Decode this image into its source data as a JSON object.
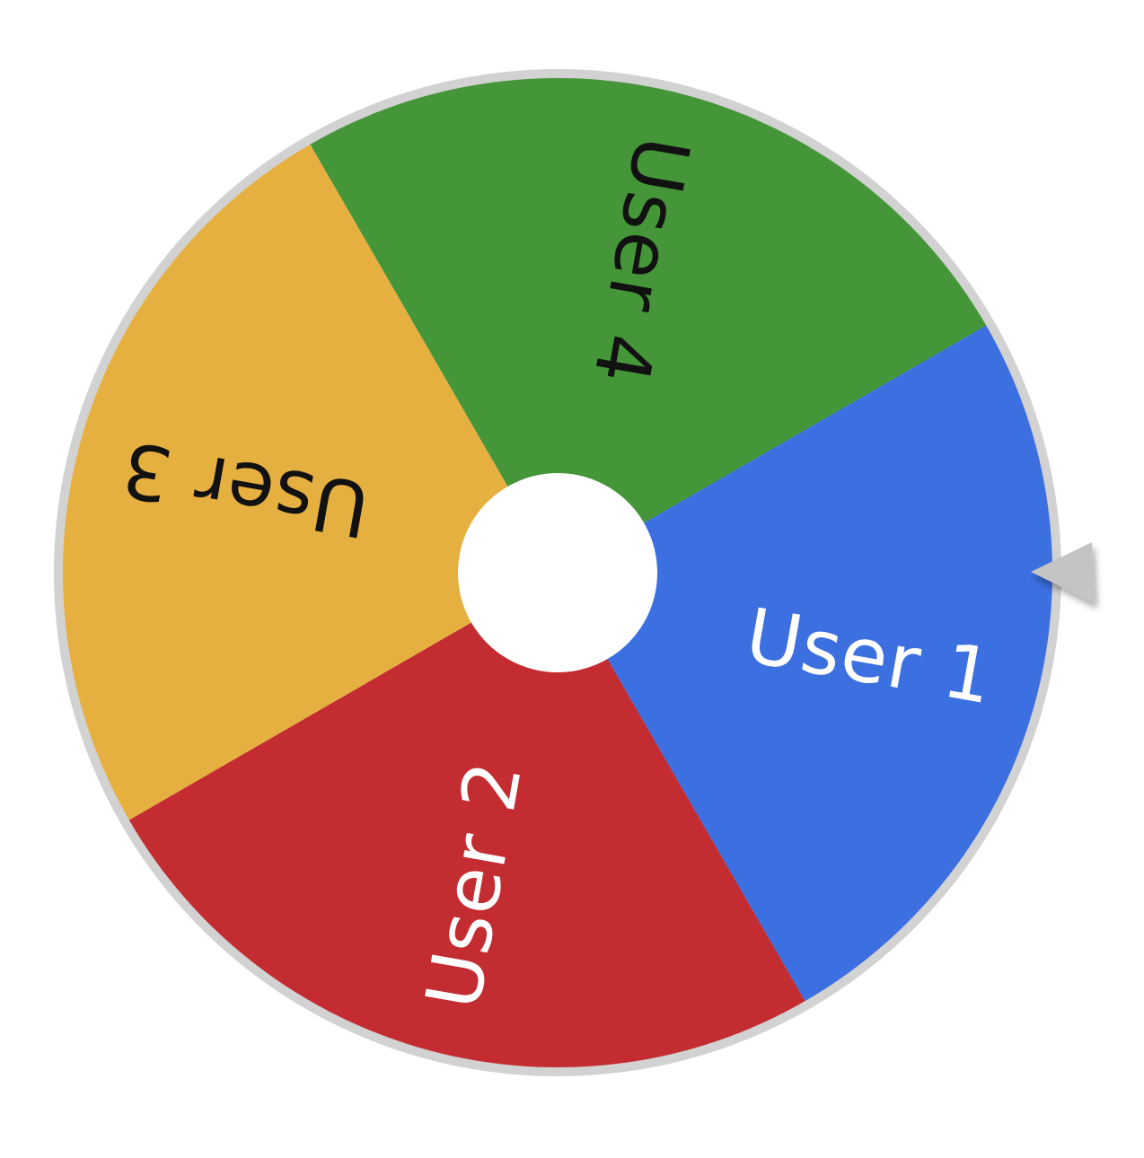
{
  "wheel": {
    "segments": [
      {
        "label": "User 1",
        "color": "#3C6FE0",
        "text_color": "#ffffff"
      },
      {
        "label": "User 2",
        "color": "#C32C31",
        "text_color": "#ffffff"
      },
      {
        "label": "User 3",
        "color": "#E6B040",
        "text_color": "#111111"
      },
      {
        "label": "User 4",
        "color": "#459539",
        "text_color": "#111111"
      }
    ],
    "rim_color": "#D2D2D2",
    "hub_color": "#ffffff",
    "pointer_color": "#C4C4C4",
    "pointer_icon": "triangle-pointer-icon"
  }
}
